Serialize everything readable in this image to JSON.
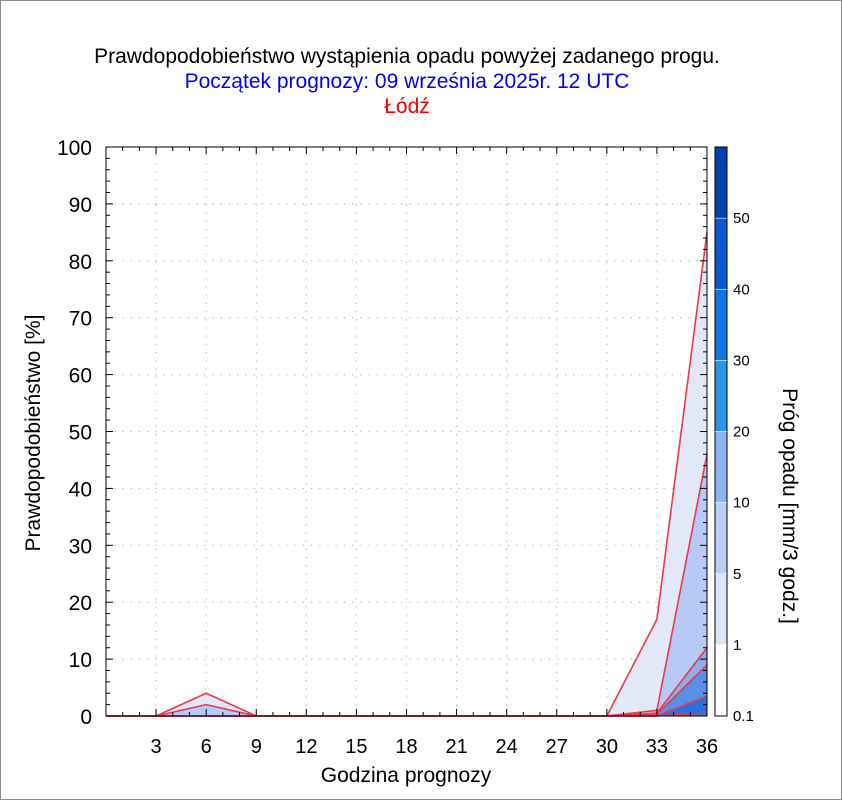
{
  "chart_data": {
    "type": "area",
    "title": "Prawdopodobieństwo wystąpienia opadu powyżej zadanego progu.",
    "subtitle": "Początek prognozy: 09 września 2025r. 12 UTC",
    "location": "Łódź",
    "xlabel": "Godzina prognozy",
    "ylabel": "Prawdopodobieństwo [%]",
    "xlim": [
      0,
      36
    ],
    "ylim": [
      0,
      100
    ],
    "x_ticks": [
      3,
      6,
      9,
      12,
      15,
      18,
      21,
      24,
      27,
      30,
      33,
      36
    ],
    "y_ticks": [
      0,
      10,
      20,
      30,
      40,
      50,
      60,
      70,
      80,
      90,
      100
    ],
    "grid": true,
    "x": [
      0,
      3,
      6,
      9,
      12,
      15,
      18,
      21,
      24,
      27,
      30,
      33,
      36
    ],
    "series": [
      {
        "threshold": 0.1,
        "color": "#e2e8f8",
        "values": [
          0,
          0,
          4,
          0,
          0,
          0,
          0,
          0,
          0,
          0,
          0,
          17,
          85
        ]
      },
      {
        "threshold": 1,
        "color": "#b6caf5",
        "values": [
          0,
          0,
          2,
          0,
          0,
          0,
          0,
          0,
          0,
          0,
          0,
          1,
          46
        ]
      },
      {
        "threshold": 5,
        "color": "#8aaeee",
        "values": [
          0,
          0,
          0,
          0,
          0,
          0,
          0,
          0,
          0,
          0,
          0,
          0.5,
          12
        ]
      },
      {
        "threshold": 10,
        "color": "#5a8fe8",
        "values": [
          0,
          0,
          0,
          0,
          0,
          0,
          0,
          0,
          0,
          0,
          0,
          0.3,
          9
        ]
      },
      {
        "threshold": 20,
        "color": "#2e6fe0",
        "values": [
          0,
          0,
          0,
          0,
          0,
          0,
          0,
          0,
          0,
          0,
          0,
          0,
          3.5
        ]
      },
      {
        "threshold": 30,
        "color": "#0a8ee8",
        "values": [
          0,
          0,
          0,
          0,
          0,
          0,
          0,
          0,
          0,
          0,
          0,
          0,
          0.5
        ]
      }
    ],
    "series_line_color": "#e83a4a",
    "colorbar": {
      "label": "Próg opadu [mm/3 godz.]",
      "tick_labels": [
        "0.1",
        "1",
        "5",
        "10",
        "20",
        "30",
        "40",
        "50"
      ],
      "colors": [
        "#ffffff",
        "#dde6f6",
        "#b9cff5",
        "#8db3f0",
        "#2d95ec",
        "#0f76e3",
        "#0a58cb",
        "#003fae"
      ]
    }
  }
}
